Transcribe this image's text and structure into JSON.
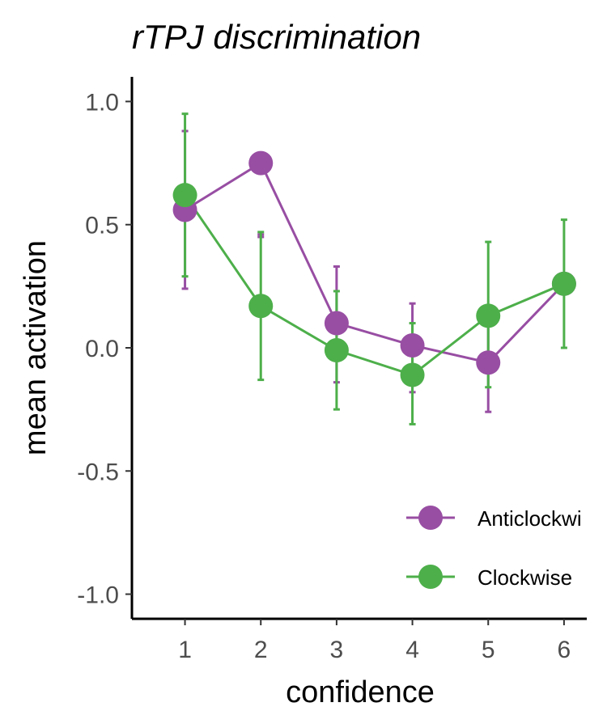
{
  "chart_data": {
    "type": "line",
    "title": "rTPJ discrimination",
    "xlabel": "confidence",
    "ylabel": "mean activation",
    "x": [
      1,
      2,
      3,
      4,
      5,
      6
    ],
    "xlim": [
      0.3,
      6.3
    ],
    "ylim": [
      -1.1,
      1.1
    ],
    "yticks": [
      -1.0,
      -0.5,
      0.0,
      0.5,
      1.0
    ],
    "ytick_labels": [
      "-1.0",
      "-0.5",
      "0.0",
      "0.5",
      "1.0"
    ],
    "xtick_labels": [
      "1",
      "2",
      "3",
      "4",
      "5",
      "6"
    ],
    "grid": false,
    "legend_position": "bottom-right",
    "series": [
      {
        "name": "Anticlockwi",
        "color": "#984ea3",
        "values": [
          0.56,
          0.75,
          0.1,
          0.01,
          -0.06,
          0.26
        ],
        "error_low": [
          0.24,
          0.45,
          -0.14,
          -0.18,
          -0.26,
          0.26
        ],
        "error_high": [
          0.88,
          0.46,
          0.33,
          0.18,
          0.14,
          0.26
        ]
      },
      {
        "name": "Clockwise",
        "color": "#4daf4a",
        "values": [
          0.62,
          0.17,
          -0.01,
          -0.11,
          0.13,
          0.26
        ],
        "error_low": [
          0.29,
          -0.13,
          -0.25,
          -0.31,
          -0.16,
          0.0
        ],
        "error_high": [
          0.95,
          0.47,
          0.23,
          0.1,
          0.43,
          0.52
        ]
      }
    ]
  }
}
